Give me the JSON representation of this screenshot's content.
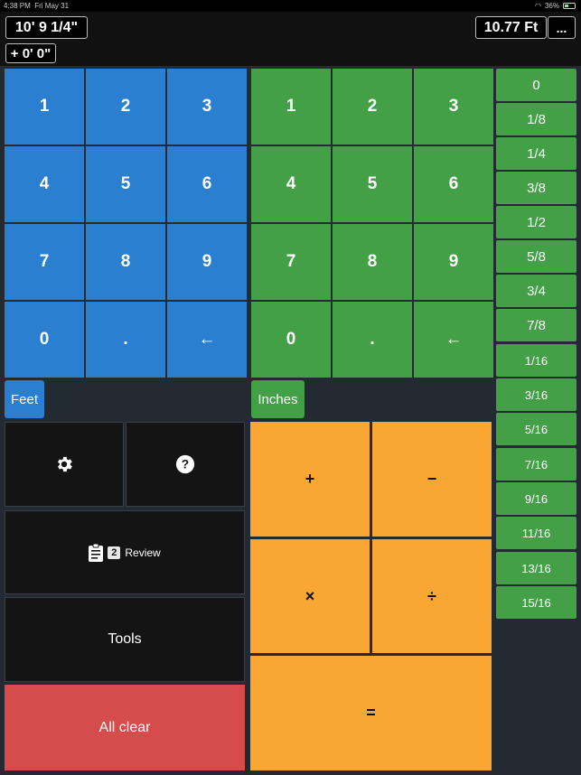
{
  "status": {
    "time": "4:38 PM",
    "date": "Fri May 31",
    "battery": "36%"
  },
  "display": {
    "main_value": "10' 9 1/4\"",
    "total_value": "10.77 Ft",
    "more_label": "...",
    "operation_value": "+ 0' 0\""
  },
  "feet_pad": {
    "keys": [
      "1",
      "2",
      "3",
      "4",
      "5",
      "6",
      "7",
      "8",
      "9",
      "0",
      ".",
      "←"
    ],
    "unit_label": "Feet"
  },
  "inches_pad": {
    "keys": [
      "1",
      "2",
      "3",
      "4",
      "5",
      "6",
      "7",
      "8",
      "9",
      "0",
      ".",
      "←"
    ],
    "unit_label": "Inches"
  },
  "fractions": [
    "0",
    "1/8",
    "1/4",
    "3/8",
    "1/2",
    "5/8",
    "3/4",
    "7/8",
    "1/16",
    "3/16",
    "5/16",
    "7/16",
    "9/16",
    "11/16",
    "13/16",
    "15/16"
  ],
  "actions": {
    "review_count": "2",
    "review_label": "Review",
    "tools_label": "Tools",
    "clear_label": "All clear"
  },
  "operators": {
    "add": "+",
    "subtract": "−",
    "multiply": "×",
    "divide": "÷",
    "equals": "="
  },
  "colors": {
    "feet": "#2b7fd0",
    "inches": "#43a047",
    "operator": "#f9a732",
    "clear": "#d64b4b"
  }
}
